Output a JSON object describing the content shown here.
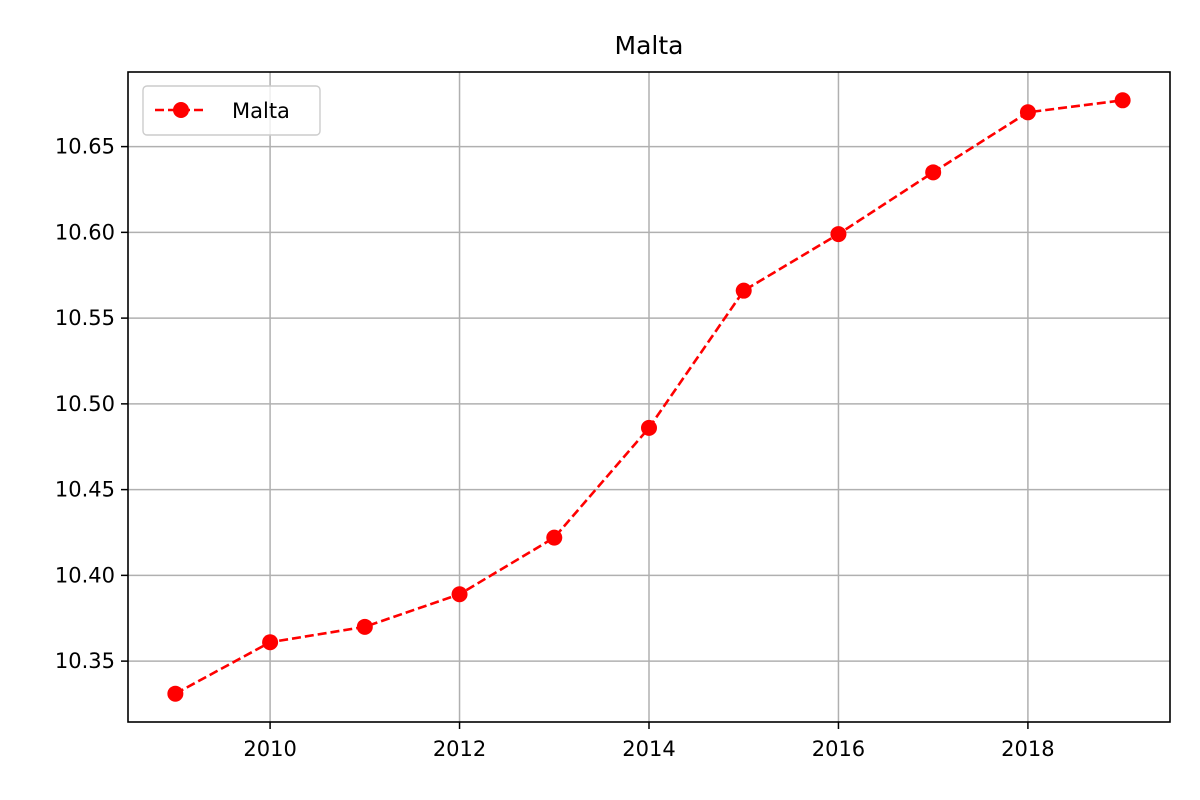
{
  "chart_data": {
    "type": "line",
    "title": "Malta",
    "xlabel": "",
    "ylabel": "",
    "x": [
      2009,
      2010,
      2011,
      2012,
      2013,
      2014,
      2015,
      2016,
      2017,
      2018,
      2019
    ],
    "series": [
      {
        "name": "Malta",
        "values": [
          10.331,
          10.361,
          10.37,
          10.389,
          10.422,
          10.486,
          10.566,
          10.599,
          10.635,
          10.67,
          10.677
        ],
        "color": "#ff0000",
        "line_style": "dashed",
        "marker": "circle"
      }
    ],
    "xlim": [
      2008.5,
      19.5
    ],
    "xlim_note_removed": true,
    "ylim": [
      10.3145,
      10.6935
    ],
    "xticks": [
      2010,
      2012,
      2014,
      2016,
      2018
    ],
    "xtick_labels": [
      "2010",
      "2012",
      "2014",
      "2016",
      "2018"
    ],
    "yticks": [
      10.35,
      10.4,
      10.45,
      10.5,
      10.55,
      10.6,
      10.65
    ],
    "ytick_labels": [
      "10.35",
      "10.40",
      "10.45",
      "10.50",
      "10.55",
      "10.60",
      "10.65"
    ],
    "grid": true,
    "legend_position": "top-left",
    "grid_color": "#b0b0b0",
    "axis_color": "#000000"
  }
}
